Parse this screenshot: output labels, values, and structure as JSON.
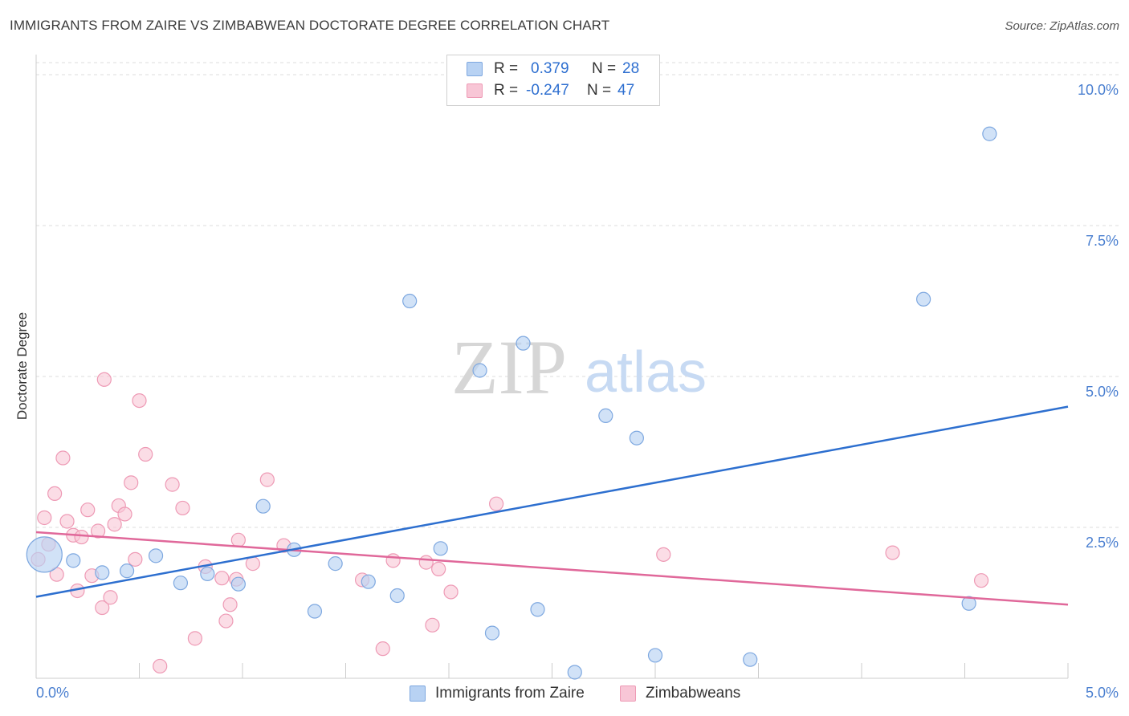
{
  "title": "IMMIGRANTS FROM ZAIRE VS ZIMBABWEAN DOCTORATE DEGREE CORRELATION CHART",
  "source": "Source: ZipAtlas.com",
  "watermark": {
    "zip": "ZIP",
    "atlas": "atlas"
  },
  "legend": {
    "rows": [
      {
        "r_label": "R =",
        "r_value": "0.379",
        "n_label": "N =",
        "n_value": "28"
      },
      {
        "r_label": "R =",
        "r_value": "-0.247",
        "n_label": "N =",
        "n_value": "47"
      }
    ]
  },
  "colors": {
    "blue_fill": "#b8d2f3",
    "blue_stroke": "#7ea8e0",
    "blue_line": "#2d6fcf",
    "pink_fill": "#f8c6d6",
    "pink_stroke": "#ee9ab5",
    "pink_line": "#e0689a",
    "tick_label": "#4a7fd0",
    "grid": "#dddddd"
  },
  "chart_data": {
    "type": "scatter",
    "title": "IMMIGRANTS FROM ZAIRE VS ZIMBABWEAN DOCTORATE DEGREE CORRELATION CHART",
    "xlabel": "",
    "ylabel": "Doctorate Degree",
    "xlim": [
      0,
      5.0
    ],
    "ylim": [
      0,
      10.2
    ],
    "x_tick_labels": [
      "0.0%",
      "5.0%"
    ],
    "y_ticks": [
      {
        "value": 2.5,
        "label": "2.5%"
      },
      {
        "value": 5.0,
        "label": "5.0%"
      },
      {
        "value": 7.5,
        "label": "7.5%"
      },
      {
        "value": 10.0,
        "label": "10.0%"
      }
    ],
    "series": [
      {
        "name": "Immigrants from Zaire",
        "color": "blue",
        "trend": {
          "x": [
            0,
            5.0
          ],
          "y": [
            1.35,
            4.5
          ]
        },
        "points": [
          {
            "x": 0.04,
            "y": 2.05,
            "big": true
          },
          {
            "x": 0.18,
            "y": 1.95
          },
          {
            "x": 0.32,
            "y": 1.75
          },
          {
            "x": 0.44,
            "y": 1.78
          },
          {
            "x": 0.58,
            "y": 2.03
          },
          {
            "x": 0.7,
            "y": 1.58
          },
          {
            "x": 0.83,
            "y": 1.73
          },
          {
            "x": 0.98,
            "y": 1.56
          },
          {
            "x": 1.1,
            "y": 2.85
          },
          {
            "x": 1.25,
            "y": 2.13
          },
          {
            "x": 1.35,
            "y": 1.11
          },
          {
            "x": 1.45,
            "y": 1.9
          },
          {
            "x": 1.61,
            "y": 1.6
          },
          {
            "x": 1.75,
            "y": 1.37
          },
          {
            "x": 1.81,
            "y": 6.25
          },
          {
            "x": 1.96,
            "y": 2.15
          },
          {
            "x": 2.15,
            "y": 5.1
          },
          {
            "x": 2.21,
            "y": 0.75
          },
          {
            "x": 2.36,
            "y": 5.55
          },
          {
            "x": 2.43,
            "y": 1.14
          },
          {
            "x": 2.61,
            "y": 0.1
          },
          {
            "x": 2.76,
            "y": 4.35
          },
          {
            "x": 2.91,
            "y": 3.98
          },
          {
            "x": 3.0,
            "y": 0.38
          },
          {
            "x": 3.46,
            "y": 0.31
          },
          {
            "x": 4.3,
            "y": 6.28
          },
          {
            "x": 4.52,
            "y": 1.24
          },
          {
            "x": 4.62,
            "y": 9.02
          }
        ]
      },
      {
        "name": "Zimbabweans",
        "color": "pink",
        "trend": {
          "x": [
            0,
            5.0
          ],
          "y": [
            2.42,
            1.22
          ]
        },
        "points": [
          {
            "x": 0.01,
            "y": 1.97
          },
          {
            "x": 0.04,
            "y": 2.66
          },
          {
            "x": 0.06,
            "y": 2.22
          },
          {
            "x": 0.09,
            "y": 3.06
          },
          {
            "x": 0.1,
            "y": 1.72
          },
          {
            "x": 0.13,
            "y": 3.65
          },
          {
            "x": 0.15,
            "y": 2.6
          },
          {
            "x": 0.18,
            "y": 2.37
          },
          {
            "x": 0.2,
            "y": 1.45
          },
          {
            "x": 0.22,
            "y": 2.34
          },
          {
            "x": 0.25,
            "y": 2.79
          },
          {
            "x": 0.27,
            "y": 1.7
          },
          {
            "x": 0.3,
            "y": 2.44
          },
          {
            "x": 0.32,
            "y": 1.17
          },
          {
            "x": 0.33,
            "y": 4.95
          },
          {
            "x": 0.36,
            "y": 1.34
          },
          {
            "x": 0.38,
            "y": 2.55
          },
          {
            "x": 0.4,
            "y": 2.86
          },
          {
            "x": 0.43,
            "y": 2.72
          },
          {
            "x": 0.46,
            "y": 3.24
          },
          {
            "x": 0.48,
            "y": 1.97
          },
          {
            "x": 0.5,
            "y": 4.6
          },
          {
            "x": 0.53,
            "y": 3.71
          },
          {
            "x": 0.6,
            "y": 0.2
          },
          {
            "x": 0.66,
            "y": 3.21
          },
          {
            "x": 0.71,
            "y": 2.82
          },
          {
            "x": 0.77,
            "y": 0.66
          },
          {
            "x": 0.82,
            "y": 1.85
          },
          {
            "x": 0.9,
            "y": 1.66
          },
          {
            "x": 0.92,
            "y": 0.95
          },
          {
            "x": 0.94,
            "y": 1.22
          },
          {
            "x": 0.97,
            "y": 1.64
          },
          {
            "x": 0.98,
            "y": 2.29
          },
          {
            "x": 1.05,
            "y": 1.9
          },
          {
            "x": 1.12,
            "y": 3.29
          },
          {
            "x": 1.2,
            "y": 2.2
          },
          {
            "x": 1.58,
            "y": 1.63
          },
          {
            "x": 1.68,
            "y": 0.49
          },
          {
            "x": 1.73,
            "y": 1.95
          },
          {
            "x": 1.89,
            "y": 1.92
          },
          {
            "x": 1.92,
            "y": 0.88
          },
          {
            "x": 1.95,
            "y": 1.81
          },
          {
            "x": 2.01,
            "y": 1.43
          },
          {
            "x": 2.23,
            "y": 2.89
          },
          {
            "x": 3.04,
            "y": 2.05
          },
          {
            "x": 4.15,
            "y": 2.08
          },
          {
            "x": 4.58,
            "y": 1.62
          }
        ]
      }
    ]
  }
}
